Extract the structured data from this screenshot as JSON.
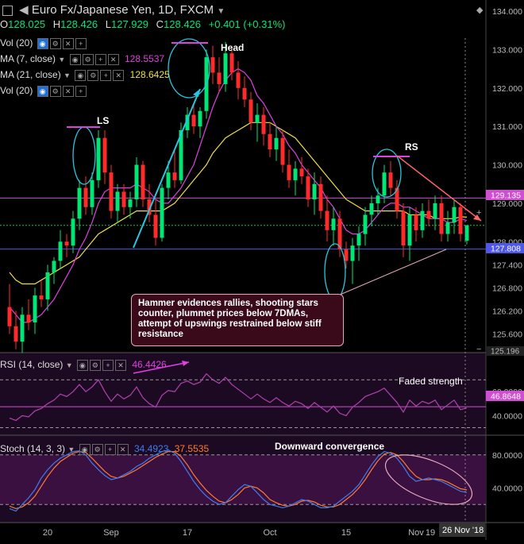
{
  "header": {
    "symbol": "Euro Fx/Japanese Yen, 1D, FXCM",
    "o_label": "O",
    "o": "128.025",
    "h_label": "H",
    "h": "128.426",
    "l_label": "L",
    "l": "127.929",
    "c_label": "C",
    "c": "128.426",
    "change": "+0.401 (+0.31%)"
  },
  "indicators": {
    "vol1": "Vol (20)",
    "ma7": "MA (7, close)",
    "ma7_value": "128.5537",
    "ma21": "MA (21, close)",
    "ma21_value": "128.6425",
    "vol2": "Vol (20)",
    "rsi": "RSI (14, close)",
    "rsi_value": "46.4426",
    "stoch": "Stoch (14, 3, 3)",
    "stoch_k": "34.4923",
    "stoch_d": "37.5535"
  },
  "annotations": {
    "ls": "LS",
    "head": "Head",
    "rs": "RS",
    "callout": "Hammer evidences rallies, shooting stars counter, plummet prices below 7DMAs, attempt of upswings restrained below stiff resistance",
    "rsi_note": "Faded strength",
    "stoch_note": "Downward convergence"
  },
  "badges": {
    "resistance": "129.135",
    "support": "127.808",
    "hidden_low": "125.196",
    "rsi_level": "46.8648",
    "date": "26 Nov '18"
  },
  "colors": {
    "up": "#00e676",
    "down": "#ff2b2b",
    "ma7": "#e040e0",
    "ma21": "#f0e040",
    "level_line": "#d14dd1",
    "support_line": "#4f57e8",
    "stoch_k": "#3d7cf0",
    "stoch_d": "#ff7a2e"
  },
  "chart_data": {
    "type": "candlestick",
    "price_axis": {
      "min": 125.196,
      "max": 134.0,
      "ticks": [
        "134.000",
        "133.000",
        "132.000",
        "131.000",
        "130.000",
        "129.000",
        "128.000",
        "127.400",
        "126.800",
        "126.200",
        "125.600"
      ]
    },
    "x_ticks": [
      "20",
      "Sep",
      "17",
      "Oct",
      "15",
      "Nov",
      "19"
    ],
    "candles": [
      [
        126.3,
        126.9,
        125.6,
        125.8
      ],
      [
        125.8,
        126.2,
        125.2,
        125.4
      ],
      [
        125.4,
        126.3,
        125.1,
        126.1
      ],
      [
        126.1,
        126.5,
        125.7,
        125.9
      ],
      [
        125.9,
        126.8,
        125.6,
        126.6
      ],
      [
        126.6,
        127.0,
        126.3,
        126.5
      ],
      [
        126.5,
        127.4,
        126.2,
        127.2
      ],
      [
        127.2,
        127.6,
        126.9,
        127.5
      ],
      [
        127.5,
        128.3,
        127.3,
        128.0
      ],
      [
        128.0,
        128.2,
        127.6,
        127.9
      ],
      [
        127.9,
        128.8,
        127.7,
        128.6
      ],
      [
        128.6,
        129.6,
        128.3,
        129.4
      ],
      [
        129.4,
        129.7,
        128.7,
        128.9
      ],
      [
        128.9,
        129.8,
        128.7,
        129.6
      ],
      [
        129.6,
        130.9,
        129.4,
        130.7
      ],
      [
        130.7,
        130.9,
        129.5,
        129.8
      ],
      [
        129.8,
        130.0,
        128.6,
        128.8
      ],
      [
        128.8,
        129.5,
        128.5,
        129.3
      ],
      [
        129.3,
        129.5,
        128.7,
        128.9
      ],
      [
        128.9,
        129.3,
        128.6,
        129.1
      ],
      [
        129.1,
        130.2,
        128.9,
        130.0
      ],
      [
        130.0,
        130.1,
        128.9,
        129.1
      ],
      [
        129.1,
        129.5,
        128.5,
        128.7
      ],
      [
        128.7,
        129.1,
        127.9,
        128.1
      ],
      [
        128.1,
        129.5,
        128.0,
        129.4
      ],
      [
        129.4,
        130.1,
        129.1,
        129.8
      ],
      [
        129.8,
        130.4,
        129.4,
        129.6
      ],
      [
        129.6,
        131.1,
        129.5,
        130.9
      ],
      [
        130.9,
        131.5,
        130.7,
        131.3
      ],
      [
        131.3,
        131.6,
        130.8,
        131.0
      ],
      [
        131.0,
        131.5,
        130.7,
        131.4
      ],
      [
        131.4,
        133.0,
        131.2,
        132.8
      ],
      [
        132.8,
        133.1,
        132.1,
        132.4
      ],
      [
        132.4,
        132.8,
        131.9,
        132.1
      ],
      [
        132.1,
        133.2,
        131.9,
        132.9
      ],
      [
        132.9,
        133.1,
        132.2,
        132.4
      ],
      [
        132.4,
        132.7,
        131.7,
        132.0
      ],
      [
        132.0,
        132.3,
        131.5,
        131.7
      ],
      [
        131.7,
        131.9,
        130.9,
        131.1
      ],
      [
        131.1,
        131.6,
        130.6,
        131.3
      ],
      [
        131.3,
        131.5,
        130.5,
        130.8
      ],
      [
        130.8,
        131.1,
        130.2,
        130.4
      ],
      [
        130.4,
        131.0,
        130.1,
        130.7
      ],
      [
        130.7,
        130.9,
        129.8,
        130.0
      ],
      [
        130.0,
        130.4,
        129.4,
        129.6
      ],
      [
        129.6,
        130.1,
        129.2,
        129.9
      ],
      [
        129.9,
        130.2,
        129.5,
        129.7
      ],
      [
        129.7,
        129.9,
        128.9,
        129.1
      ],
      [
        129.1,
        129.8,
        128.7,
        129.5
      ],
      [
        129.5,
        129.7,
        128.6,
        128.8
      ],
      [
        128.8,
        129.2,
        128.0,
        128.3
      ],
      [
        128.3,
        128.9,
        127.9,
        128.6
      ],
      [
        128.6,
        128.8,
        127.6,
        127.8
      ],
      [
        127.8,
        128.0,
        127.3,
        127.5
      ],
      [
        127.5,
        128.1,
        126.9,
        127.9
      ],
      [
        127.9,
        128.4,
        127.5,
        128.2
      ],
      [
        128.2,
        128.9,
        127.9,
        128.7
      ],
      [
        128.7,
        129.2,
        128.4,
        129.0
      ],
      [
        129.0,
        129.4,
        128.7,
        129.2
      ],
      [
        129.2,
        130.0,
        129.0,
        129.8
      ],
      [
        129.8,
        130.1,
        129.2,
        129.4
      ],
      [
        129.4,
        129.6,
        128.6,
        128.8
      ],
      [
        128.8,
        129.0,
        127.6,
        127.9
      ],
      [
        127.9,
        128.9,
        127.5,
        128.7
      ],
      [
        128.7,
        128.9,
        128.0,
        128.3
      ],
      [
        128.3,
        129.0,
        128.1,
        128.8
      ],
      [
        128.8,
        129.1,
        128.4,
        128.6
      ],
      [
        128.6,
        129.2,
        128.3,
        129.0
      ],
      [
        129.0,
        129.2,
        128.0,
        128.2
      ],
      [
        128.2,
        128.8,
        128.0,
        128.5
      ],
      [
        128.5,
        129.1,
        128.2,
        128.9
      ],
      [
        128.9,
        129.0,
        128.0,
        128.2
      ],
      [
        128.025,
        128.426,
        127.929,
        128.426
      ]
    ],
    "ma7": [
      126.3,
      126.1,
      125.9,
      125.9,
      126.0,
      126.1,
      126.3,
      126.5,
      126.8,
      127.1,
      127.4,
      127.8,
      128.1,
      128.5,
      129.0,
      129.3,
      129.4,
      129.4,
      129.4,
      129.4,
      129.5,
      129.4,
      129.3,
      129.1,
      129.0,
      129.0,
      129.2,
      129.4,
      129.7,
      130.0,
      130.5,
      131.0,
      131.5,
      131.9,
      132.2,
      132.4,
      132.5,
      132.4,
      132.2,
      131.8,
      131.6,
      131.3,
      131.0,
      130.8,
      130.5,
      130.3,
      130.0,
      129.8,
      129.6,
      129.4,
      129.1,
      128.9,
      128.6,
      128.3,
      128.2,
      128.2,
      128.3,
      128.5,
      128.7,
      128.9,
      129.0,
      129.0,
      128.9,
      128.9,
      128.8,
      128.7,
      128.6,
      128.6,
      128.6,
      128.5,
      128.5,
      128.6,
      128.55
    ],
    "ma21": [
      127.2,
      127.0,
      126.9,
      126.9,
      126.9,
      127.0,
      127.1,
      127.2,
      127.3,
      127.4,
      127.5,
      127.6,
      127.8,
      128.0,
      128.2,
      128.3,
      128.4,
      128.5,
      128.6,
      128.7,
      128.8,
      128.8,
      128.8,
      128.8,
      128.8,
      128.9,
      129.0,
      129.2,
      129.4,
      129.6,
      129.8,
      130.0,
      130.3,
      130.5,
      130.7,
      130.8,
      130.9,
      131.0,
      131.1,
      131.1,
      131.1,
      131.1,
      131.0,
      130.9,
      130.8,
      130.7,
      130.5,
      130.3,
      130.1,
      129.9,
      129.7,
      129.5,
      129.3,
      129.1,
      129.0,
      128.9,
      128.8,
      128.8,
      128.8,
      128.8,
      128.8,
      128.8,
      128.8,
      128.7,
      128.7,
      128.7,
      128.7,
      128.6,
      128.6,
      128.6,
      128.6,
      128.65,
      128.64
    ],
    "levels": {
      "resistance": 129.135,
      "support": 127.808,
      "current": 128.426
    },
    "rsi": {
      "axis": {
        "min": 25,
        "max": 90,
        "ticks": [
          "60.0000",
          "40.0000"
        ]
      },
      "bands": [
        70,
        30
      ],
      "values": [
        38,
        36,
        40,
        39,
        44,
        46,
        50,
        53,
        58,
        56,
        60,
        66,
        60,
        64,
        70,
        60,
        52,
        58,
        54,
        57,
        64,
        55,
        50,
        47,
        57,
        61,
        60,
        67,
        69,
        66,
        68,
        75,
        70,
        67,
        72,
        66,
        62,
        58,
        54,
        58,
        54,
        51,
        55,
        51,
        48,
        52,
        50,
        46,
        51,
        47,
        43,
        48,
        42,
        40,
        47,
        51,
        56,
        58,
        60,
        63,
        57,
        51,
        43,
        53,
        48,
        52,
        50,
        53,
        45,
        49,
        53,
        45,
        46.44
      ]
    },
    "stoch": {
      "axis": {
        "min": 0,
        "max": 100,
        "ticks": [
          "80.0000",
          "40.0000"
        ]
      },
      "bands": [
        80,
        20
      ],
      "k": [
        15,
        12,
        20,
        28,
        38,
        52,
        62,
        70,
        76,
        80,
        84,
        85,
        80,
        70,
        62,
        55,
        50,
        52,
        56,
        60,
        66,
        70,
        76,
        80,
        84,
        86,
        82,
        72,
        60,
        48,
        38,
        30,
        24,
        20,
        22,
        30,
        38,
        44,
        42,
        34,
        26,
        20,
        18,
        16,
        18,
        22,
        26,
        24,
        20,
        16,
        16,
        18,
        24,
        30,
        36,
        44,
        56,
        68,
        78,
        84,
        82,
        76,
        66,
        54,
        48,
        50,
        52,
        50,
        48,
        44,
        40,
        36,
        34.49
      ],
      "d": [
        18,
        15,
        17,
        22,
        30,
        42,
        54,
        64,
        72,
        77,
        82,
        84,
        83,
        76,
        68,
        60,
        54,
        52,
        54,
        58,
        62,
        67,
        72,
        77,
        81,
        84,
        84,
        78,
        68,
        56,
        46,
        37,
        30,
        24,
        22,
        26,
        32,
        40,
        42,
        40,
        34,
        26,
        22,
        19,
        18,
        20,
        24,
        25,
        23,
        19,
        17,
        17,
        20,
        26,
        32,
        40,
        50,
        62,
        73,
        81,
        83,
        80,
        72,
        62,
        54,
        50,
        50,
        51,
        50,
        47,
        43,
        39,
        37.55
      ]
    }
  }
}
